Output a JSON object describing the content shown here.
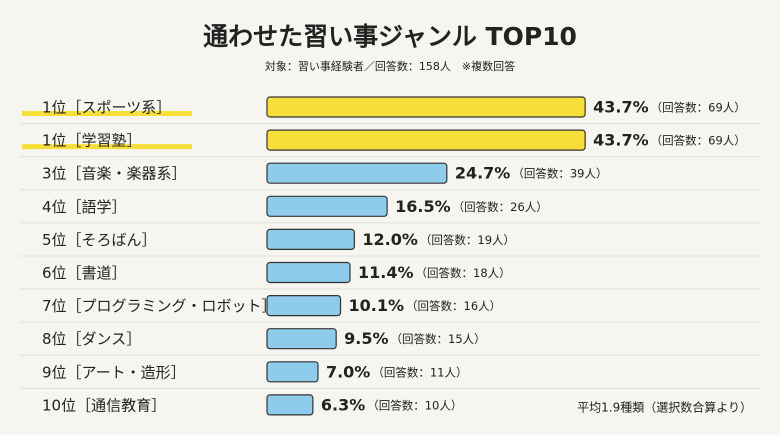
{
  "chart_data": {
    "type": "bar",
    "orientation": "horizontal",
    "title": "通わせた習い事ジャンル TOP10",
    "subtitle": "対象：習い事経験者／回答数：158人　※複数回答",
    "footnote": "平均1.9種類（選択数合算より）",
    "categories": [
      "1位［スポーツ系］",
      "1位［学習塾］",
      "3位［音楽・楽器系］",
      "4位［語学］",
      "5位［そろばん］",
      "6位［書道］",
      "7位［プログラミング・ロボット］",
      "8位［ダンス］",
      "9位［アート・造形］",
      "10位［通信教育］"
    ],
    "values": [
      43.7,
      43.7,
      24.7,
      16.5,
      12.0,
      11.4,
      10.1,
      9.5,
      7.0,
      6.3
    ],
    "value_labels": [
      "43.7%",
      "43.7%",
      "24.7%",
      "16.5%",
      "12.0%",
      "11.4%",
      "10.1%",
      "9.5%",
      "7.0%",
      "6.3%"
    ],
    "count_labels": [
      "（回答数：69人）",
      "（回答数：69人）",
      "（回答数：39人）",
      "（回答数：26人）",
      "（回答数：19人）",
      "（回答数：18人）",
      "（回答数：16人）",
      "（回答数：15人）",
      "（回答数：11人）",
      "（回答数：10人）"
    ],
    "colors": [
      "#f7df3a",
      "#f7df3a",
      "#8fcbea",
      "#8fcbea",
      "#8fcbea",
      "#8fcbea",
      "#8fcbea",
      "#8fcbea",
      "#8fcbea",
      "#8fcbea"
    ],
    "highlight_color": "#f7df3a"
  }
}
